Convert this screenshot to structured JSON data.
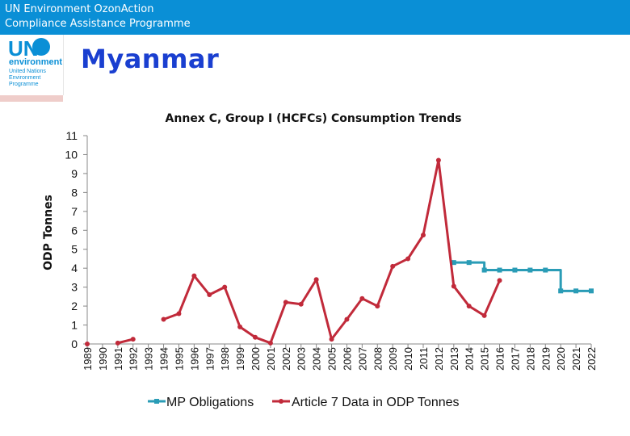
{
  "header": {
    "line1": "UN Environment OzonAction",
    "line2": "Compliance Assistance Programme"
  },
  "logo": {
    "un": "UN",
    "environment": "environment",
    "small": "United Nations Environment Programme"
  },
  "page_title": "Myanmar",
  "colors": {
    "header_bg": "#0a8fd6",
    "title": "#1a3fd0",
    "mp": "#2a9cb6",
    "art7": "#c12a3a"
  },
  "chart_data": {
    "type": "line",
    "title": "Annex C, Group I (HCFCs) Consumption Trends",
    "ylabel": "ODP Tonnes",
    "xlabel": "",
    "ylim": [
      0,
      11
    ],
    "yticks": [
      0,
      1,
      2,
      3,
      4,
      5,
      6,
      7,
      8,
      9,
      10,
      11
    ],
    "x": [
      "1989",
      "1990",
      "1991",
      "1992",
      "1993",
      "1994",
      "1995",
      "1996",
      "1997",
      "1998",
      "1999",
      "2000",
      "2001",
      "2002",
      "2003",
      "2004",
      "2005",
      "2006",
      "2007",
      "2008",
      "2009",
      "2010",
      "2011",
      "2012",
      "2013",
      "2014",
      "2015",
      "2016",
      "2017",
      "2018",
      "2019",
      "2020",
      "2021",
      "2022"
    ],
    "series": [
      {
        "name": "MP Obligations",
        "color": "#2a9cb6",
        "step": true,
        "values": [
          null,
          null,
          null,
          null,
          null,
          null,
          null,
          null,
          null,
          null,
          null,
          null,
          null,
          null,
          null,
          null,
          null,
          null,
          null,
          null,
          null,
          null,
          null,
          null,
          4.3,
          4.3,
          3.9,
          3.9,
          3.9,
          3.9,
          3.9,
          2.8,
          2.8,
          2.8
        ]
      },
      {
        "name": "Article 7 Data in ODP Tonnes",
        "color": "#c12a3a",
        "step": false,
        "values": [
          0,
          null,
          0.05,
          0.25,
          null,
          1.3,
          1.6,
          3.6,
          2.6,
          3.0,
          0.9,
          0.35,
          0.05,
          2.2,
          2.1,
          3.4,
          0.25,
          1.3,
          2.4,
          2.0,
          4.1,
          4.5,
          5.75,
          9.7,
          3.05,
          2.0,
          1.5,
          3.35,
          null,
          null,
          null,
          null,
          null,
          null
        ]
      }
    ],
    "legend_position": "bottom",
    "grid": false
  }
}
